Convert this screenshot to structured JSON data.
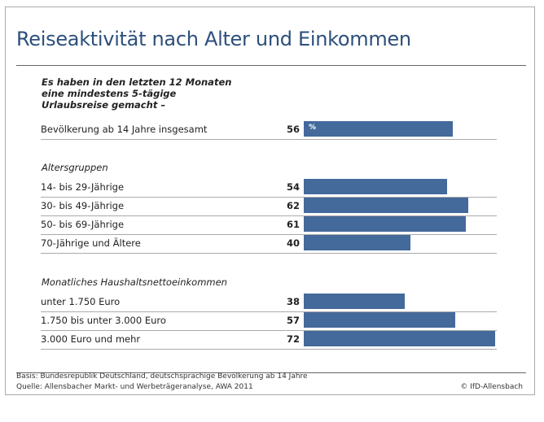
{
  "title": "Reiseaktivität nach Alter und Einkommen",
  "question": "Es haben in den letzten 12 Monaten eine mindestens 5-tägige Urlaubsreise gemacht –",
  "unit": "%",
  "bar_color": "#44699b",
  "chart_data": {
    "type": "bar",
    "orientation": "horizontal",
    "unit": "%",
    "groups": [
      {
        "label": "",
        "categories": [
          "Bevölkerung ab 14 Jahre insgesamt"
        ],
        "values": [
          56
        ]
      },
      {
        "label": "Altersgruppen",
        "categories": [
          "14- bis 29-Jährige",
          "30- bis 49-Jährige",
          "50- bis 69-Jährige",
          "70-Jährige und Ältere"
        ],
        "values": [
          54,
          62,
          61,
          40
        ]
      },
      {
        "label": "Monatliches Haushaltsnettoeinkommen",
        "categories": [
          "unter 1.750 Euro",
          "1.750 bis unter 3.000 Euro",
          "3.000 Euro und mehr"
        ],
        "values": [
          38,
          57,
          72
        ]
      }
    ]
  },
  "footer": {
    "basis": "Basis: Bundesrepublik Deutschland, deutschsprachige Bevölkerung ab 14 Jahre",
    "source": "Quelle: Allensbacher Markt- und Werbeträgeranalyse, AWA 2011",
    "copyright": "© IfD-Allensbach"
  }
}
